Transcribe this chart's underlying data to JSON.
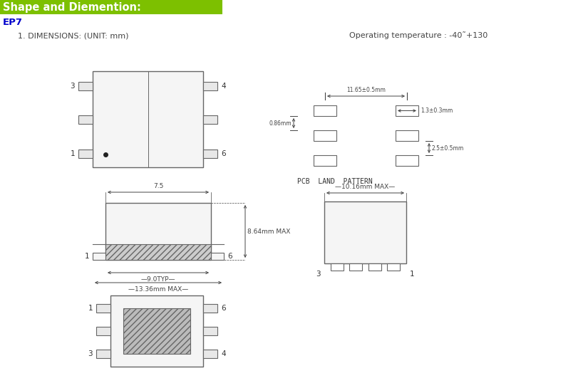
{
  "title_text": "Shape and Diemention:",
  "title_bg": "#7dc000",
  "title_color": "#ffffff",
  "ep7_color": "#0000cc",
  "dim_text": "1. DIMENSIONS: (UNIT: mm)",
  "op_temp": "Operating temperature : -40˜+130",
  "pcb_land": "PCB  LAND  PATTERN",
  "bg_color": "#ffffff",
  "line_color": "#666666",
  "dim_line_color": "#444444",
  "label_color": "#333333"
}
